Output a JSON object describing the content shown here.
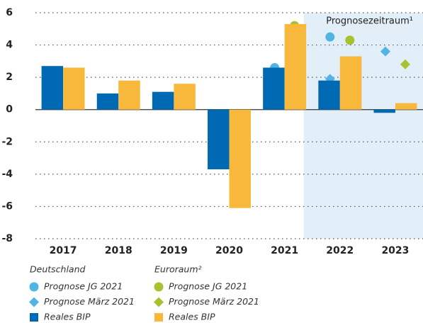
{
  "chart_data": {
    "type": "bar",
    "categories": [
      "2017",
      "2018",
      "2019",
      "2020",
      "2021",
      "2022",
      "2023"
    ],
    "ylim": [
      -8,
      6
    ],
    "yticks": [
      -8,
      -6,
      -4,
      -2,
      0,
      2,
      4,
      6
    ],
    "grid": true,
    "annotation": "Prognosezeitraum¹",
    "forecast_from": "2022",
    "legend_titles": [
      "Deutschland",
      "Euroraum²"
    ],
    "series": [
      {
        "name": "Prognose JG 2021",
        "marker": "circle",
        "color": "#52b4e4",
        "values": [
          null,
          null,
          null,
          null,
          2.6,
          4.5,
          null
        ]
      },
      {
        "name": "Prognose März 2021",
        "marker": "diamond",
        "color": "#52b4e4",
        "values": [
          null,
          null,
          null,
          null,
          null,
          1.9,
          3.6
        ]
      },
      {
        "name": "Reales BIP",
        "marker": "bar",
        "color": "#0069b4",
        "values": [
          2.7,
          1.0,
          1.1,
          -3.7,
          2.6,
          1.8,
          -0.2
        ]
      },
      {
        "name": "Prognose JG 2021",
        "marker": "circle",
        "color": "#a8c12f",
        "values": [
          null,
          null,
          null,
          null,
          5.2,
          4.3,
          null
        ]
      },
      {
        "name": "Prognose März 2021",
        "marker": "diamond",
        "color": "#a8c12f",
        "values": [
          null,
          null,
          null,
          null,
          null,
          null,
          2.8
        ]
      },
      {
        "name": "Reales BIP",
        "marker": "bar",
        "color": "#f7b83b",
        "values": [
          2.6,
          1.8,
          1.6,
          -6.1,
          5.3,
          3.3,
          0.4
        ]
      }
    ]
  }
}
